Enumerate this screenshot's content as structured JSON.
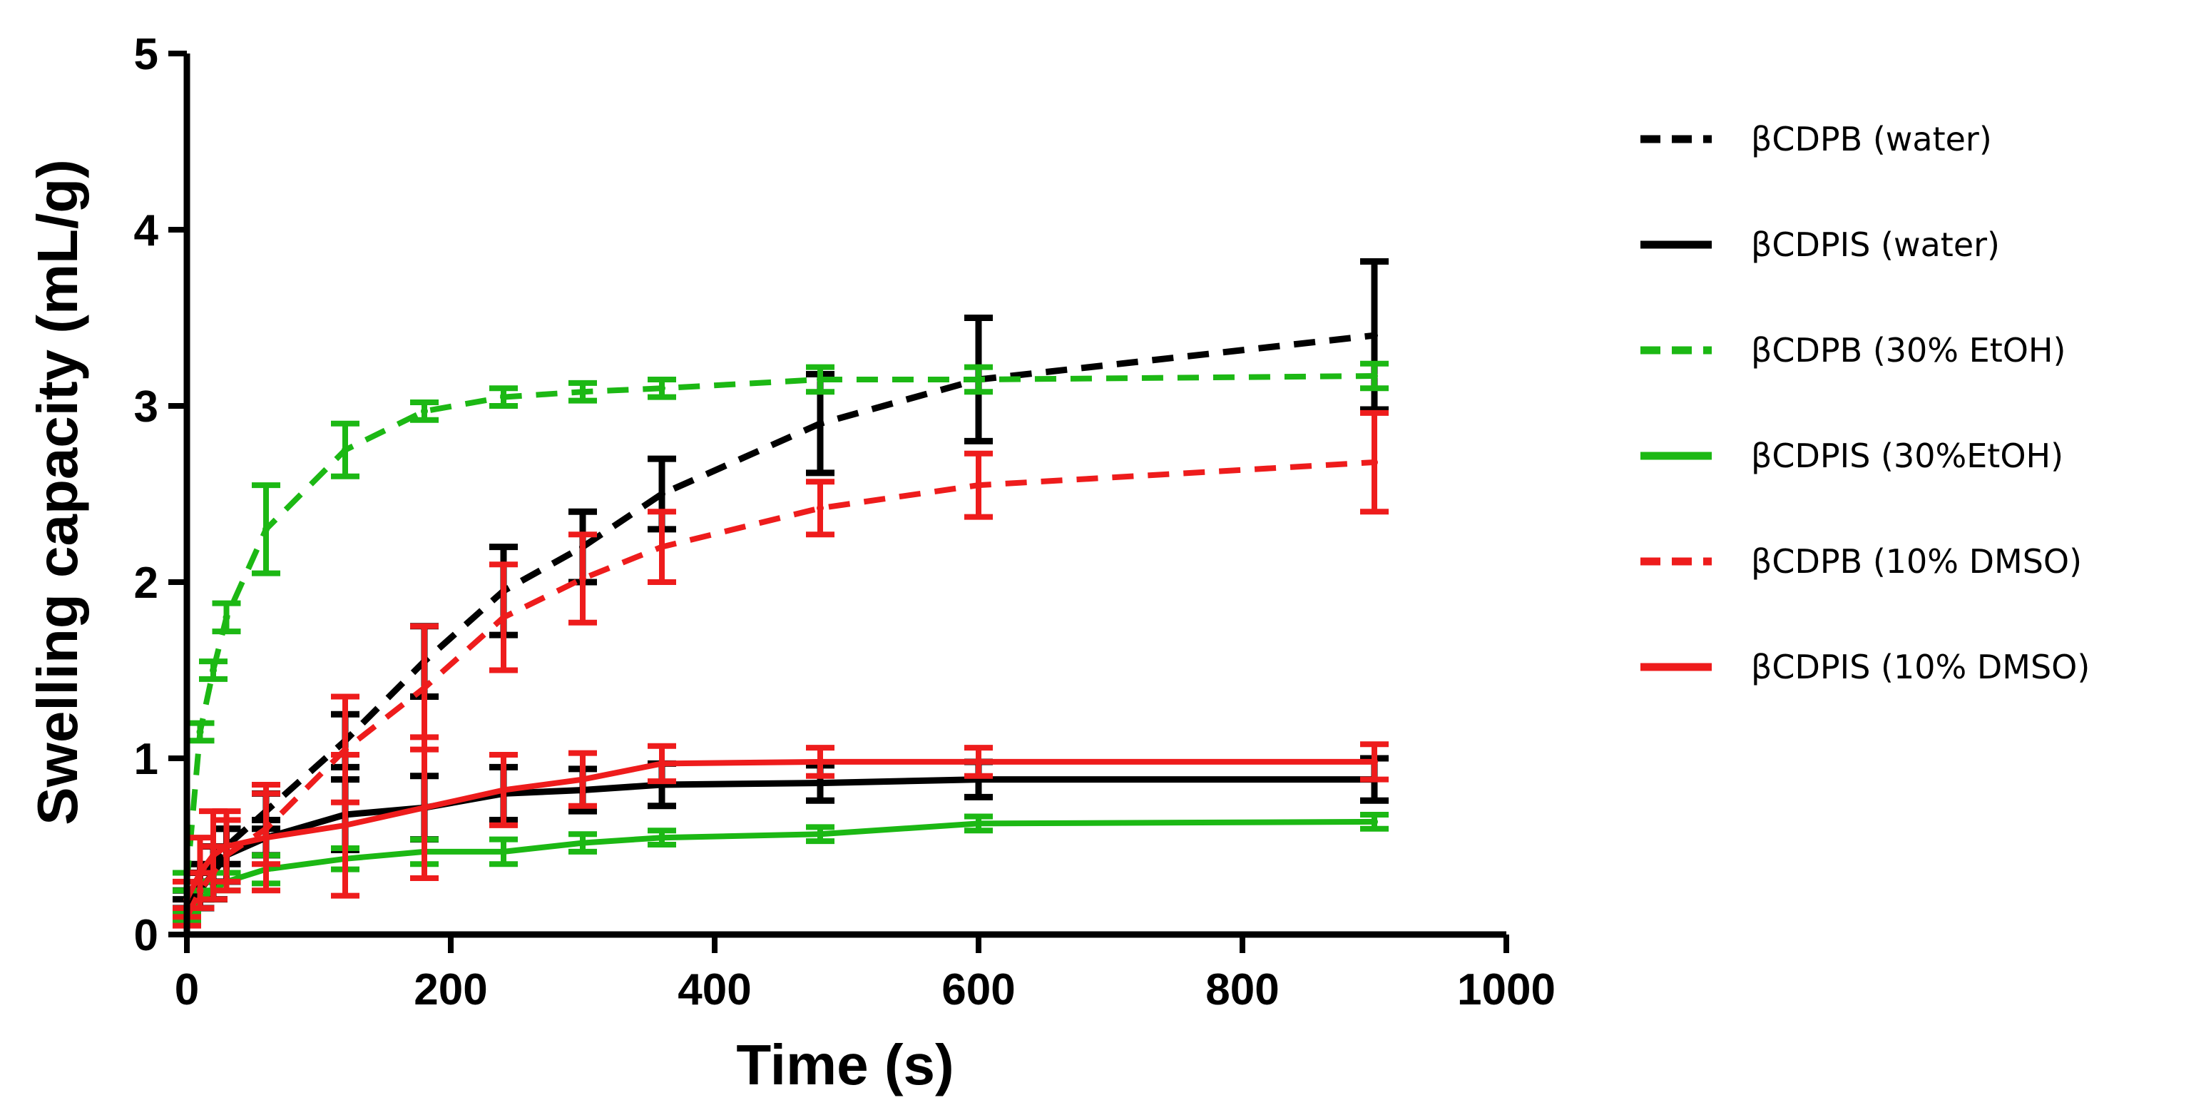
{
  "chart_data": {
    "type": "line",
    "title": "",
    "xlabel": "Time (s)",
    "ylabel": "Swelling capacity (mL/g)",
    "xlim": [
      0,
      1000
    ],
    "ylim": [
      0,
      5
    ],
    "x_ticks": [
      0,
      200,
      400,
      600,
      800,
      1000
    ],
    "y_ticks": [
      0,
      1,
      2,
      3,
      4,
      5
    ],
    "grid": false,
    "legend_position": "right",
    "colors": {
      "black": "#000000",
      "green": "#1cb814",
      "red": "#ee1c1c"
    },
    "series": [
      {
        "name": "βCDPB (water)",
        "style": "dashed",
        "color": "#000000",
        "x": [
          0,
          10,
          20,
          30,
          60,
          120,
          180,
          240,
          300,
          360,
          480,
          600,
          900
        ],
        "y": [
          0.2,
          0.3,
          0.4,
          0.5,
          0.7,
          1.1,
          1.55,
          1.95,
          2.2,
          2.5,
          2.9,
          3.15,
          3.4
        ],
        "err": [
          0.05,
          0.1,
          0.1,
          0.1,
          0.1,
          0.15,
          0.2,
          0.25,
          0.2,
          0.2,
          0.28,
          0.35,
          0.42
        ]
      },
      {
        "name": "βCDPIS (water)",
        "style": "solid",
        "color": "#000000",
        "x": [
          0,
          10,
          20,
          30,
          60,
          120,
          180,
          240,
          300,
          360,
          480,
          600,
          900
        ],
        "y": [
          0.15,
          0.25,
          0.35,
          0.45,
          0.55,
          0.68,
          0.72,
          0.8,
          0.82,
          0.85,
          0.86,
          0.88,
          0.88
        ],
        "err": [
          0.05,
          0.1,
          0.15,
          0.15,
          0.1,
          0.2,
          0.18,
          0.15,
          0.12,
          0.12,
          0.1,
          0.1,
          0.12
        ]
      },
      {
        "name": "βCDPB (30% EtOH)",
        "style": "dashed",
        "color": "#1cb814",
        "x": [
          0,
          10,
          20,
          30,
          60,
          120,
          180,
          240,
          300,
          360,
          480,
          600,
          900
        ],
        "y": [
          0.3,
          1.15,
          1.5,
          1.8,
          2.3,
          2.75,
          2.97,
          3.05,
          3.08,
          3.1,
          3.15,
          3.15,
          3.17
        ],
        "err": [
          0.05,
          0.05,
          0.05,
          0.08,
          0.25,
          0.15,
          0.05,
          0.05,
          0.05,
          0.05,
          0.07,
          0.07,
          0.07
        ]
      },
      {
        "name": "βCDPIS (30%EtOH)",
        "style": "solid",
        "color": "#1cb814",
        "x": [
          0,
          10,
          20,
          30,
          60,
          120,
          180,
          240,
          300,
          360,
          480,
          600,
          900
        ],
        "y": [
          0.1,
          0.2,
          0.25,
          0.3,
          0.37,
          0.43,
          0.47,
          0.47,
          0.52,
          0.55,
          0.57,
          0.63,
          0.64
        ],
        "err": [
          0.03,
          0.05,
          0.05,
          0.05,
          0.08,
          0.06,
          0.07,
          0.07,
          0.05,
          0.04,
          0.04,
          0.04,
          0.04
        ]
      },
      {
        "name": "βCDPB (10% DMSO)",
        "style": "dashed",
        "color": "#ee1c1c",
        "x": [
          0,
          10,
          20,
          30,
          60,
          120,
          180,
          240,
          300,
          360,
          480,
          600,
          900
        ],
        "y": [
          0.1,
          0.25,
          0.35,
          0.45,
          0.6,
          1.05,
          1.4,
          1.8,
          2.02,
          2.2,
          2.42,
          2.55,
          2.68
        ],
        "err": [
          0.05,
          0.1,
          0.15,
          0.2,
          0.2,
          0.3,
          0.35,
          0.3,
          0.25,
          0.2,
          0.15,
          0.18,
          0.28
        ]
      },
      {
        "name": "βCDPIS (10% DMSO)",
        "style": "solid",
        "color": "#ee1c1c",
        "x": [
          0,
          10,
          20,
          30,
          60,
          120,
          180,
          240,
          300,
          360,
          480,
          600,
          900
        ],
        "y": [
          0.2,
          0.35,
          0.45,
          0.5,
          0.55,
          0.62,
          0.72,
          0.82,
          0.88,
          0.97,
          0.98,
          0.98,
          0.98
        ],
        "err": [
          0.1,
          0.2,
          0.25,
          0.2,
          0.3,
          0.4,
          0.4,
          0.2,
          0.15,
          0.1,
          0.08,
          0.08,
          0.1
        ]
      }
    ]
  }
}
